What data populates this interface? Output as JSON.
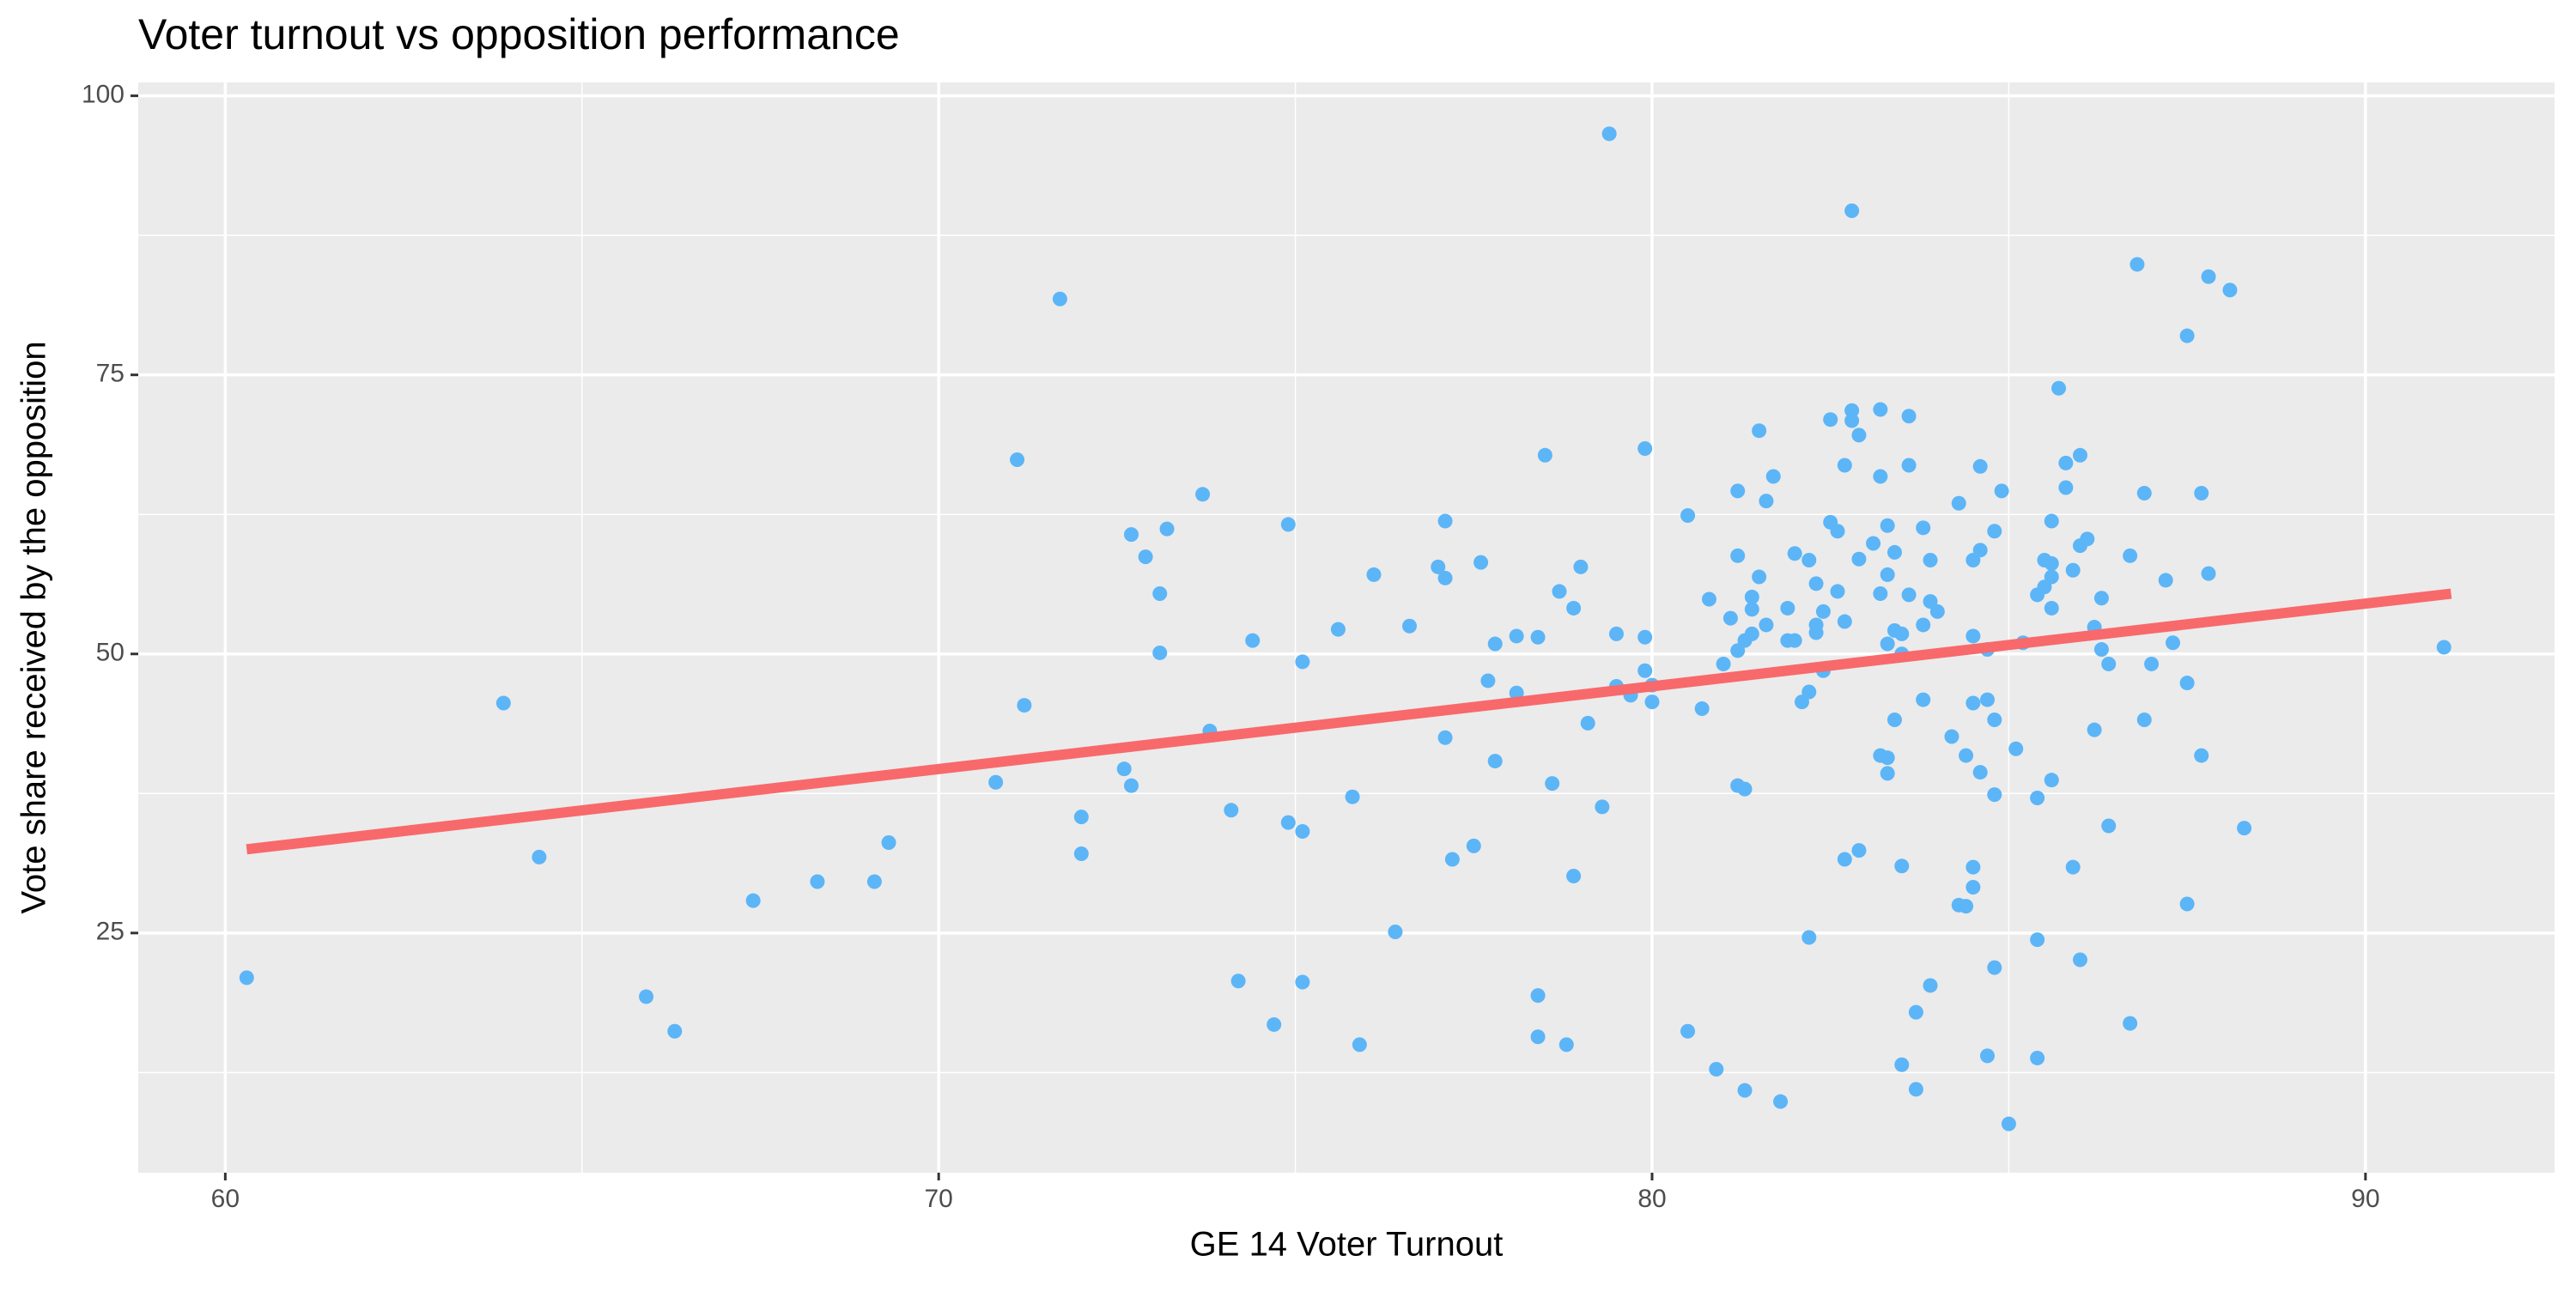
{
  "chart_data": {
    "type": "scatter",
    "title": "Voter turnout vs opposition performance",
    "x_label": "GE 14 Voter Turnout",
    "y_label": "Vote share received by the opposition",
    "xlim": [
      58.78,
      92.65
    ],
    "ylim": [
      3.53,
      101.2
    ],
    "xticks": [
      60,
      70,
      80,
      90
    ],
    "yticks": [
      25,
      50,
      75,
      100
    ],
    "xminor": [
      65,
      75,
      85
    ],
    "yminor": [
      12.5,
      37.5,
      62.5,
      87.5
    ],
    "grid": true,
    "color": "#5cb5f7",
    "x": [
      60.3,
      63.9,
      64.4,
      65.9,
      66.3,
      67.4,
      68.3,
      69.1,
      69.3,
      70.8,
      71.1,
      71.2,
      71.7,
      72.0,
      72.0,
      72.6,
      72.7,
      72.7,
      72.9,
      73.1,
      73.1,
      73.2,
      73.7,
      73.8,
      74.1,
      74.2,
      74.4,
      74.7,
      74.9,
      74.9,
      75.1,
      75.1,
      75.1,
      75.6,
      75.8,
      75.9,
      76.1,
      76.4,
      76.6,
      77.0,
      77.1,
      77.1,
      77.1,
      77.2,
      77.5,
      77.6,
      77.7,
      77.8,
      77.8,
      78.1,
      78.1,
      78.4,
      78.4,
      78.4,
      78.5,
      78.6,
      78.7,
      78.8,
      78.9,
      78.9,
      79.0,
      79.1,
      79.3,
      79.4,
      79.5,
      79.5,
      79.7,
      79.9,
      79.9,
      79.9,
      80.0,
      80.0,
      80.5,
      80.5,
      80.7,
      80.8,
      80.9,
      81.0,
      81.1,
      81.2,
      81.2,
      81.2,
      81.2,
      81.3,
      81.3,
      81.3,
      81.4,
      81.4,
      81.4,
      81.5,
      81.5,
      81.6,
      81.6,
      81.7,
      81.8,
      81.9,
      81.9,
      82.0,
      82.0,
      82.1,
      82.2,
      82.2,
      82.2,
      82.3,
      82.3,
      82.3,
      82.4,
      82.4,
      82.5,
      82.5,
      82.6,
      82.6,
      82.7,
      82.7,
      82.7,
      82.8,
      82.8,
      82.8,
      82.9,
      82.9,
      82.9,
      83.1,
      83.2,
      83.2,
      83.2,
      83.2,
      83.3,
      83.3,
      83.3,
      83.3,
      83.3,
      83.4,
      83.4,
      83.4,
      83.5,
      83.5,
      83.5,
      83.5,
      83.6,
      83.6,
      83.6,
      83.7,
      83.7,
      83.8,
      83.8,
      83.8,
      83.9,
      83.9,
      83.9,
      84.0,
      84.2,
      84.3,
      84.3,
      84.4,
      84.4,
      84.5,
      84.5,
      84.5,
      84.5,
      84.5,
      84.6,
      84.6,
      84.6,
      84.7,
      84.7,
      84.7,
      84.8,
      84.8,
      84.8,
      84.8,
      84.9,
      85.0,
      85.1,
      85.2,
      85.4,
      85.4,
      85.4,
      85.4,
      85.5,
      85.5,
      85.6,
      85.6,
      85.6,
      85.6,
      85.6,
      85.7,
      85.8,
      85.8,
      85.9,
      85.9,
      86.0,
      86.0,
      86.1,
      86.2,
      86.2,
      86.0,
      86.3,
      86.3,
      86.4,
      86.4,
      86.7,
      86.7,
      86.8,
      86.9,
      86.9,
      87.0,
      87.2,
      87.3,
      87.5,
      87.5,
      87.5,
      87.7,
      87.7,
      87.8,
      87.8,
      88.1,
      88.3,
      91.1
    ],
    "y": [
      21.0,
      45.6,
      31.8,
      19.3,
      16.2,
      27.9,
      29.6,
      29.6,
      33.1,
      38.5,
      67.4,
      45.4,
      81.8,
      35.4,
      32.1,
      39.7,
      38.2,
      60.7,
      58.7,
      50.1,
      55.4,
      61.2,
      64.3,
      43.1,
      36.0,
      20.7,
      51.2,
      16.8,
      34.9,
      61.6,
      49.3,
      20.6,
      34.1,
      52.2,
      37.2,
      15.0,
      57.1,
      25.1,
      52.5,
      57.8,
      56.8,
      61.9,
      42.5,
      31.6,
      32.8,
      58.2,
      47.6,
      50.9,
      40.4,
      51.6,
      46.5,
      19.4,
      15.7,
      51.5,
      67.8,
      38.4,
      55.6,
      15.0,
      54.1,
      30.1,
      57.8,
      43.8,
      36.3,
      96.6,
      47.1,
      51.8,
      46.3,
      48.5,
      68.4,
      51.5,
      45.7,
      47.2,
      16.2,
      62.4,
      45.1,
      54.9,
      12.8,
      49.1,
      53.2,
      58.8,
      64.6,
      38.2,
      50.3,
      10.9,
      51.2,
      37.9,
      55.1,
      51.8,
      54.0,
      70.0,
      56.9,
      63.7,
      52.6,
      65.9,
      9.9,
      51.2,
      54.1,
      59.0,
      51.2,
      45.7,
      58.4,
      46.6,
      24.6,
      51.9,
      56.3,
      52.6,
      53.8,
      48.5,
      61.8,
      71.0,
      61.0,
      55.6,
      31.6,
      52.9,
      66.9,
      71.8,
      70.9,
      89.7,
      69.6,
      32.4,
      58.5,
      59.9,
      65.9,
      71.9,
      40.9,
      55.4,
      61.5,
      40.7,
      39.3,
      50.9,
      57.1,
      52.1,
      59.1,
      44.1,
      50.0,
      51.8,
      13.2,
      31.0,
      71.3,
      66.9,
      55.3,
      17.9,
      11.0,
      45.9,
      52.6,
      61.3,
      20.3,
      58.4,
      54.7,
      53.8,
      42.6,
      27.5,
      63.5,
      27.4,
      40.9,
      30.9,
      58.4,
      51.6,
      45.6,
      29.1,
      66.8,
      39.4,
      59.3,
      14.0,
      50.4,
      45.9,
      37.4,
      61.0,
      44.1,
      21.9,
      64.6,
      7.9,
      41.5,
      51.0,
      13.8,
      55.3,
      24.4,
      37.1,
      56.0,
      58.4,
      61.9,
      38.7,
      58.1,
      54.1,
      56.9,
      73.8,
      67.1,
      64.9,
      30.9,
      57.5,
      67.8,
      59.7,
      60.3,
      43.2,
      52.4,
      22.6,
      55.0,
      50.4,
      49.1,
      34.6,
      16.9,
      58.8,
      84.9,
      64.4,
      44.1,
      49.1,
      56.6,
      51.0,
      27.6,
      78.5,
      47.4,
      64.4,
      40.9,
      57.2,
      83.8,
      82.6,
      34.4,
      50.6
    ],
    "trend_line": {
      "x": [
        60.3,
        91.2
      ],
      "y": [
        32.5,
        55.4
      ],
      "color": "#f8696b"
    }
  }
}
